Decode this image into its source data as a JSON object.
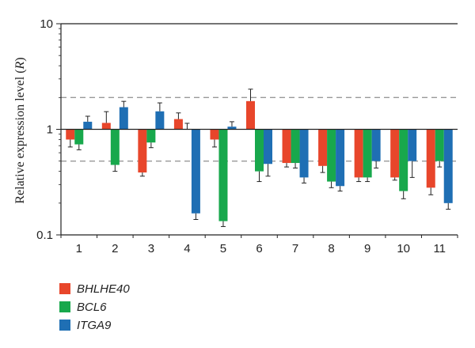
{
  "chart_data": {
    "type": "bar",
    "scale": "log",
    "ylim": [
      0.1,
      10
    ],
    "yticks": [
      "10",
      "1",
      "0.1"
    ],
    "baseline": 1,
    "reference_lines": [
      2,
      0.5
    ],
    "ylabel_main": "Relative expression level",
    "ylabel_var": "R",
    "categories": [
      "1",
      "2",
      "3",
      "4",
      "5",
      "6",
      "7",
      "8",
      "9",
      "10",
      "11"
    ],
    "series": [
      {
        "name": "BHLHE40",
        "color": "#e8462b",
        "values": [
          0.8,
          1.15,
          0.39,
          1.25,
          0.8,
          1.85,
          0.48,
          0.45,
          0.35,
          0.35,
          0.28
        ],
        "errors": [
          0.12,
          0.32,
          0.03,
          0.18,
          0.12,
          0.55,
          0.04,
          0.06,
          0.03,
          0.02,
          0.04
        ]
      },
      {
        "name": "BCL6",
        "color": "#18a84c",
        "values": [
          0.72,
          0.46,
          0.75,
          1.0,
          0.135,
          0.4,
          0.48,
          0.32,
          0.35,
          0.26,
          0.5
        ],
        "errors": [
          0.08,
          0.06,
          0.08,
          0.14,
          0.015,
          0.08,
          0.05,
          0.04,
          0.03,
          0.04,
          0.06
        ]
      },
      {
        "name": "ITGA9",
        "color": "#1f6fb4",
        "values": [
          1.18,
          1.62,
          1.48,
          0.16,
          1.06,
          0.47,
          0.35,
          0.29,
          0.5,
          0.5,
          0.2
        ],
        "errors": [
          0.15,
          0.22,
          0.3,
          0.02,
          0.12,
          0.11,
          0.04,
          0.03,
          0.07,
          0.15,
          0.025
        ]
      }
    ]
  }
}
